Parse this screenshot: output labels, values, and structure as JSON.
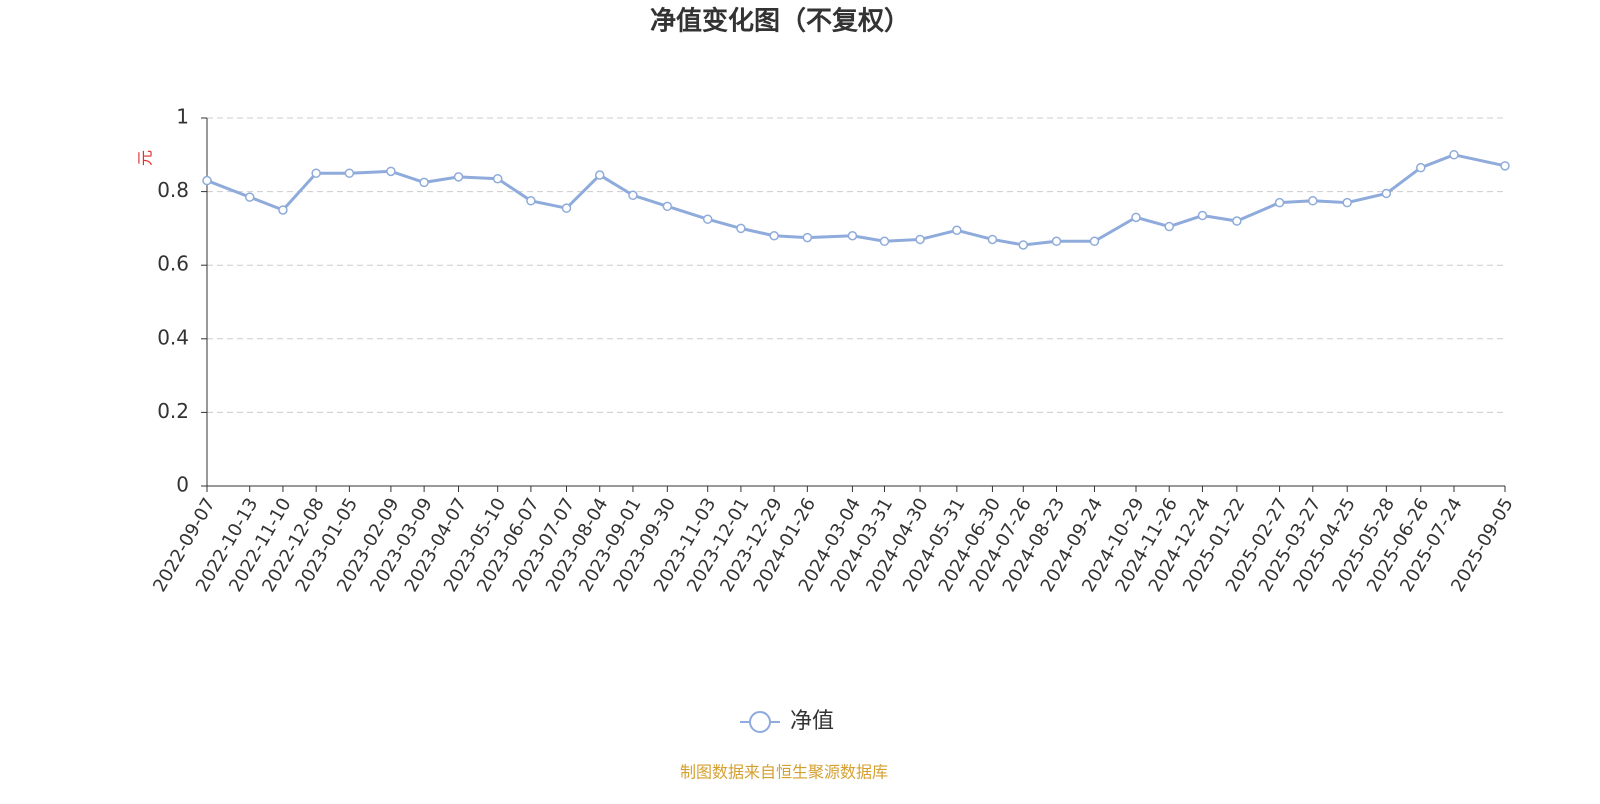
{
  "chart_data": {
    "type": "line",
    "title": "净值变化图（不复权）",
    "y_label": "元",
    "source": "制图数据来自恒生聚源数据库",
    "x": [
      "2022-09-07",
      "2022-10-13",
      "2022-11-10",
      "2022-12-08",
      "2023-01-05",
      "2023-02-09",
      "2023-03-09",
      "2023-04-07",
      "2023-05-10",
      "2023-06-07",
      "2023-07-07",
      "2023-08-04",
      "2023-09-01",
      "2023-09-30",
      "2023-11-03",
      "2023-12-01",
      "2023-12-29",
      "2024-01-26",
      "2024-03-04",
      "2024-03-31",
      "2024-04-30",
      "2024-05-31",
      "2024-06-30",
      "2024-07-26",
      "2024-08-23",
      "2024-09-24",
      "2024-10-29",
      "2024-11-26",
      "2024-12-24",
      "2025-01-22",
      "2025-02-27",
      "2025-03-27",
      "2025-04-25",
      "2025-05-28",
      "2025-06-26",
      "2025-07-24",
      "2025-09-05"
    ],
    "series": [
      {
        "name": "净值",
        "color": "#8eabdb",
        "values": [
          0.83,
          0.785,
          0.75,
          0.85,
          0.85,
          0.855,
          0.825,
          0.84,
          0.835,
          0.775,
          0.755,
          0.845,
          0.79,
          0.76,
          0.725,
          0.7,
          0.68,
          0.675,
          0.68,
          0.665,
          0.67,
          0.695,
          0.67,
          0.655,
          0.665,
          0.665,
          0.73,
          0.705,
          0.735,
          0.72,
          0.77,
          0.775,
          0.77,
          0.795,
          0.865,
          0.9,
          0.87
        ]
      }
    ],
    "ylim": [
      0,
      1
    ],
    "yticks": [
      0,
      0.2,
      0.4,
      0.6,
      0.8,
      1
    ],
    "grid": true
  }
}
